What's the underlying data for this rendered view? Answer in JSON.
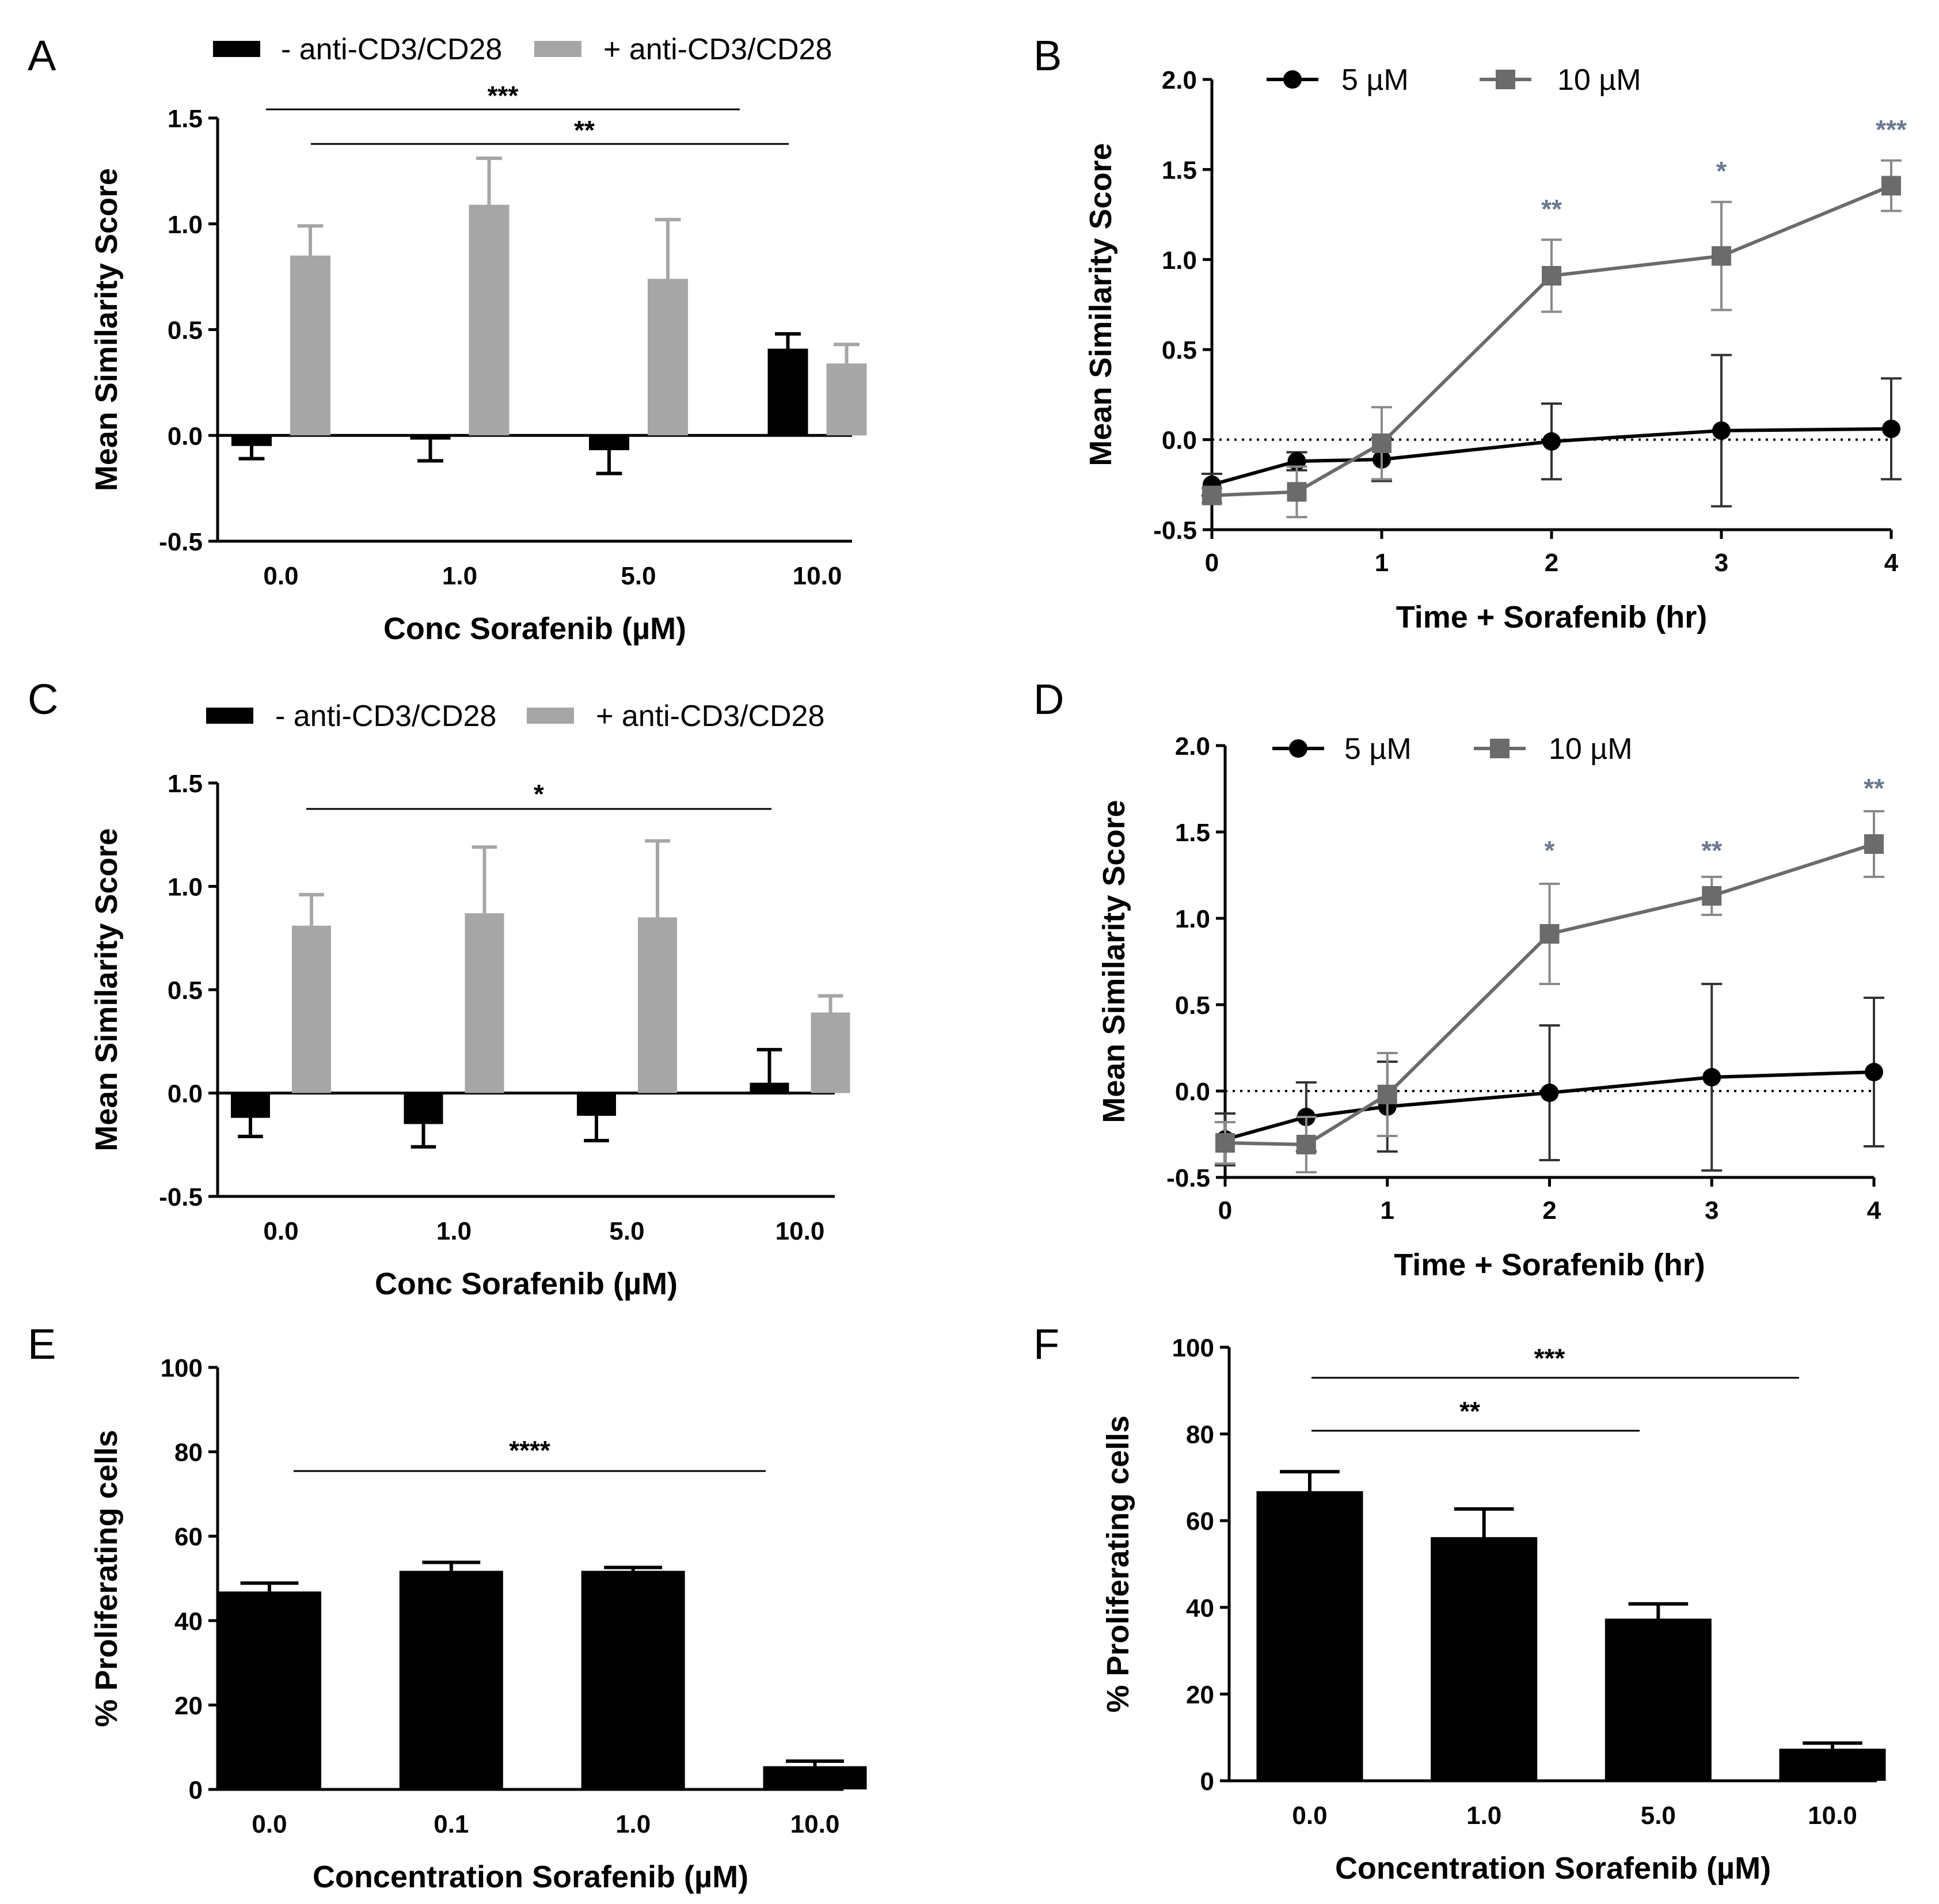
{
  "chart_data": [
    {
      "panel": "A",
      "type": "bar",
      "xlabel": "Conc Sorafenib (µM)",
      "ylabel": "Mean Similarity Score",
      "ylim": [
        -0.5,
        1.5
      ],
      "yticks": [
        -0.5,
        0.0,
        0.5,
        1.0,
        1.5
      ],
      "categories": [
        "0.0",
        "1.0",
        "5.0",
        "10.0"
      ],
      "series": [
        {
          "name": "- anti-CD3/CD28",
          "color": "#000000",
          "values": [
            -0.05,
            -0.02,
            -0.07,
            0.41
          ],
          "errors": [
            0.06,
            0.1,
            0.11,
            0.07
          ]
        },
        {
          "name": "+ anti-CD3/CD28",
          "color": "#a6a6a6",
          "values": [
            0.85,
            1.09,
            0.74,
            0.34
          ],
          "errors": [
            0.14,
            0.22,
            0.28,
            0.09
          ]
        }
      ],
      "significance": [
        {
          "label": "***",
          "from": 0,
          "to": 3
        },
        {
          "label": "**",
          "from": 0,
          "to": 3
        }
      ]
    },
    {
      "panel": "B",
      "type": "line",
      "xlabel": "Time + Sorafenib (hr)",
      "ylabel": "Mean Similarity Score",
      "xlim": [
        0,
        4
      ],
      "ylim": [
        -0.5,
        2.0
      ],
      "xticks": [
        0,
        1,
        2,
        3,
        4
      ],
      "yticks": [
        -0.5,
        0.0,
        0.5,
        1.0,
        1.5,
        2.0
      ],
      "series": [
        {
          "name": "5 µM",
          "marker": "circle",
          "color": "#000000",
          "x": [
            0,
            0.5,
            1,
            2,
            3,
            4
          ],
          "y": [
            -0.25,
            -0.12,
            -0.11,
            -0.01,
            0.05,
            0.06
          ],
          "errors": [
            0.06,
            0.05,
            0.12,
            0.21,
            0.42,
            0.28
          ]
        },
        {
          "name": "10 µM",
          "marker": "square",
          "color": "#6b6b6b",
          "x": [
            0,
            0.5,
            1,
            2,
            3,
            4
          ],
          "y": [
            -0.31,
            -0.29,
            -0.02,
            0.91,
            1.02,
            1.41
          ],
          "errors": [
            0.04,
            0.14,
            0.2,
            0.2,
            0.3,
            0.14
          ]
        }
      ],
      "point_labels": [
        {
          "x": 2,
          "label": "**",
          "above": 1.23
        },
        {
          "x": 3,
          "label": "*",
          "above": 1.44
        },
        {
          "x": 4,
          "label": "***",
          "above": 1.67
        }
      ]
    },
    {
      "panel": "C",
      "type": "bar",
      "xlabel": "Conc Sorafenib (µM)",
      "ylabel": "Mean Similarity Score",
      "ylim": [
        -0.5,
        1.5
      ],
      "yticks": [
        -0.5,
        0.0,
        0.5,
        1.0,
        1.5
      ],
      "categories": [
        "0.0",
        "1.0",
        "5.0",
        "10.0"
      ],
      "series": [
        {
          "name": "- anti-CD3/CD28",
          "color": "#000000",
          "values": [
            -0.12,
            -0.15,
            -0.11,
            0.05
          ],
          "errors": [
            0.09,
            0.11,
            0.12,
            0.16
          ]
        },
        {
          "name": "+ anti-CD3/CD28",
          "color": "#a6a6a6",
          "values": [
            0.81,
            0.87,
            0.85,
            0.39
          ],
          "errors": [
            0.15,
            0.32,
            0.37,
            0.08
          ]
        }
      ],
      "significance": [
        {
          "label": "*",
          "from": 0,
          "to": 3
        }
      ]
    },
    {
      "panel": "D",
      "type": "line",
      "xlabel": "Time + Sorafenib (hr)",
      "ylabel": "Mean Similarity Score",
      "xlim": [
        0,
        4
      ],
      "ylim": [
        -0.5,
        2.0
      ],
      "xticks": [
        0,
        1,
        2,
        3,
        4
      ],
      "yticks": [
        -0.5,
        0.0,
        0.5,
        1.0,
        1.5,
        2.0
      ],
      "series": [
        {
          "name": "5 µM",
          "marker": "circle",
          "color": "#000000",
          "x": [
            0,
            0.5,
            1,
            2,
            3,
            4
          ],
          "y": [
            -0.28,
            -0.15,
            -0.09,
            -0.01,
            0.08,
            0.11
          ],
          "errors": [
            0.15,
            0.2,
            0.26,
            0.39,
            0.54,
            0.43
          ]
        },
        {
          "name": "10 µM",
          "marker": "square",
          "color": "#6b6b6b",
          "x": [
            0,
            0.5,
            1,
            2,
            3,
            4
          ],
          "y": [
            -0.3,
            -0.31,
            -0.02,
            0.91,
            1.13,
            1.43
          ],
          "errors": [
            0.12,
            0.16,
            0.24,
            0.29,
            0.11,
            0.19
          ]
        }
      ],
      "point_labels": [
        {
          "x": 2,
          "label": "*",
          "above": 1.34
        },
        {
          "x": 3,
          "label": "**",
          "above": 1.34
        },
        {
          "x": 4,
          "label": "**",
          "above": 1.7
        }
      ]
    },
    {
      "panel": "E",
      "type": "bar",
      "xlabel": "Concentration Sorafenib (µM)",
      "ylabel": "% Proliferating cells",
      "ylim": [
        0,
        100
      ],
      "yticks": [
        0,
        20,
        40,
        60,
        80,
        100
      ],
      "categories": [
        "0.0",
        "0.1",
        "1.0",
        "10.0"
      ],
      "series": [
        {
          "name": "% Proliferating cells",
          "color": "#000000",
          "values": [
            46.9,
            51.8,
            51.8,
            5.5
          ],
          "errors": [
            2.0,
            2.0,
            0.8,
            1.2
          ]
        }
      ],
      "significance": [
        {
          "label": "****",
          "from": 0,
          "to": 3
        }
      ]
    },
    {
      "panel": "F",
      "type": "bar",
      "xlabel": "Concentration Sorafenib (µM)",
      "ylabel": "% Proliferating cells",
      "ylim": [
        0,
        100
      ],
      "yticks": [
        0,
        20,
        40,
        60,
        80,
        100
      ],
      "categories": [
        "0.0",
        "1.0",
        "5.0",
        "10.0"
      ],
      "series": [
        {
          "name": "% Proliferating cells",
          "color": "#000000",
          "values": [
            66.8,
            56.2,
            37.4,
            7.4
          ],
          "errors": [
            4.5,
            6.5,
            3.4,
            1.3
          ]
        }
      ],
      "significance": [
        {
          "label": "***",
          "from": 0,
          "to": 3
        },
        {
          "label": "**",
          "from": 0,
          "to": 2
        }
      ]
    }
  ]
}
